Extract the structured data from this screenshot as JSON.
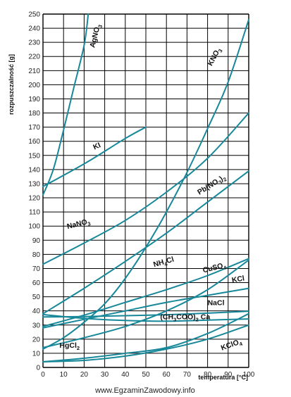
{
  "chart_data": {
    "type": "line",
    "title": "",
    "xlabel": "temperatura [°C]",
    "ylabel": "rozpuszczalność [g]",
    "xlim": [
      0,
      100
    ],
    "ylim": [
      0,
      250
    ],
    "x_ticks": [
      0,
      10,
      20,
      30,
      40,
      50,
      60,
      70,
      80,
      90,
      100
    ],
    "y_ticks": [
      0,
      10,
      20,
      30,
      40,
      50,
      60,
      70,
      80,
      90,
      100,
      110,
      120,
      130,
      140,
      150,
      160,
      170,
      180,
      190,
      200,
      210,
      220,
      230,
      240,
      250
    ],
    "grid": true,
    "line_color": "#17889a",
    "series": [
      {
        "name": "AgNO3",
        "label_main": "AgNO",
        "label_sub": "3",
        "label_at": [
          25,
          226
        ],
        "label_rotate": -76,
        "x": [
          0,
          5,
          10,
          15,
          20,
          22
        ],
        "y": [
          122,
          140,
          168,
          198,
          228,
          250
        ]
      },
      {
        "name": "KI",
        "label_main": "KI",
        "label_sub": "",
        "label_at": [
          25,
          154
        ],
        "label_rotate": -24,
        "x": [
          0,
          20,
          40,
          50
        ],
        "y": [
          128,
          144,
          162,
          170
        ]
      },
      {
        "name": "KNO3",
        "label_main": "KNO",
        "label_sub": "3",
        "label_at": [
          82,
          213
        ],
        "label_rotate": -62,
        "x": [
          0,
          10,
          20,
          30,
          40,
          50,
          60,
          70,
          80,
          90,
          100
        ],
        "y": [
          13,
          21,
          32,
          45,
          63,
          85,
          110,
          138,
          169,
          202,
          246
        ]
      },
      {
        "name": "Pb(NO3)2",
        "label_main": "Pb(NO",
        "label_sub": "3",
        "label_tail": ")",
        "label_sub2": "2",
        "label_at": [
          76,
          122
        ],
        "label_rotate": -32,
        "x": [
          0,
          20,
          40,
          60,
          80,
          100
        ],
        "y": [
          38,
          56,
          75,
          95,
          117,
          139
        ]
      },
      {
        "name": "NaNO3",
        "label_main": "NaNO",
        "label_sub": "3",
        "label_at": [
          12,
          98
        ],
        "label_rotate": -14,
        "x": [
          0,
          20,
          40,
          60,
          80,
          100
        ],
        "y": [
          73,
          88,
          104,
          124,
          148,
          180
        ]
      },
      {
        "name": "NH4Cl",
        "label_main": "NH",
        "label_sub": "4",
        "label_tail": "Cl",
        "label_at": [
          54,
          71
        ],
        "label_rotate": -16,
        "x": [
          0,
          20,
          40,
          60,
          80,
          100
        ],
        "y": [
          29,
          37,
          46,
          55,
          65,
          77
        ]
      },
      {
        "name": "CuSO4",
        "label_main": "CuSO",
        "label_sub": "4",
        "label_at": [
          78,
          67
        ],
        "label_rotate": -14,
        "x": [
          0,
          20,
          40,
          60,
          80,
          100
        ],
        "y": [
          14,
          21,
          29,
          40,
          55,
          76
        ]
      },
      {
        "name": "KCl",
        "label_main": "KCl",
        "label_sub": "",
        "label_at": [
          92,
          60
        ],
        "label_rotate": -10,
        "x": [
          0,
          20,
          40,
          60,
          80,
          100
        ],
        "y": [
          28,
          34,
          40,
          46,
          51,
          56
        ]
      },
      {
        "name": "NaCl",
        "label_main": "NaCl",
        "label_sub": "",
        "label_at": [
          80,
          44
        ],
        "label_rotate": 0,
        "x": [
          0,
          20,
          40,
          60,
          80,
          100
        ],
        "y": [
          35.7,
          36.0,
          36.6,
          37.3,
          38.4,
          39.8
        ]
      },
      {
        "name": "(CH3COO)2Ca",
        "label_main": "(CH",
        "label_sub": "3",
        "label_tail": "COO)",
        "label_sub2": "2",
        "label_tail2": " Ca",
        "label_at": [
          57,
          34
        ],
        "label_rotate": 0,
        "x": [
          0,
          20,
          40,
          60,
          80,
          100
        ],
        "y": [
          37.4,
          34.7,
          33.2,
          32.7,
          33.5,
          34.3
        ]
      },
      {
        "name": "KClO4",
        "label_main": "KClO",
        "label_sub": "4",
        "label_at": [
          87,
          12
        ],
        "label_rotate": -20,
        "x": [
          0,
          20,
          40,
          60,
          80,
          100
        ],
        "y": [
          4,
          5,
          8,
          13,
          20,
          30
        ]
      },
      {
        "name": "HgCl2",
        "label_main": "HgCl",
        "label_sub": "2",
        "label_at": [
          8,
          14
        ],
        "label_rotate": 0,
        "x": [
          0,
          20,
          40,
          60,
          80,
          100
        ],
        "y": [
          4,
          6.5,
          10,
          14,
          24,
          38
        ]
      }
    ]
  },
  "watermark": "www.EgzaminZawodowy.info"
}
